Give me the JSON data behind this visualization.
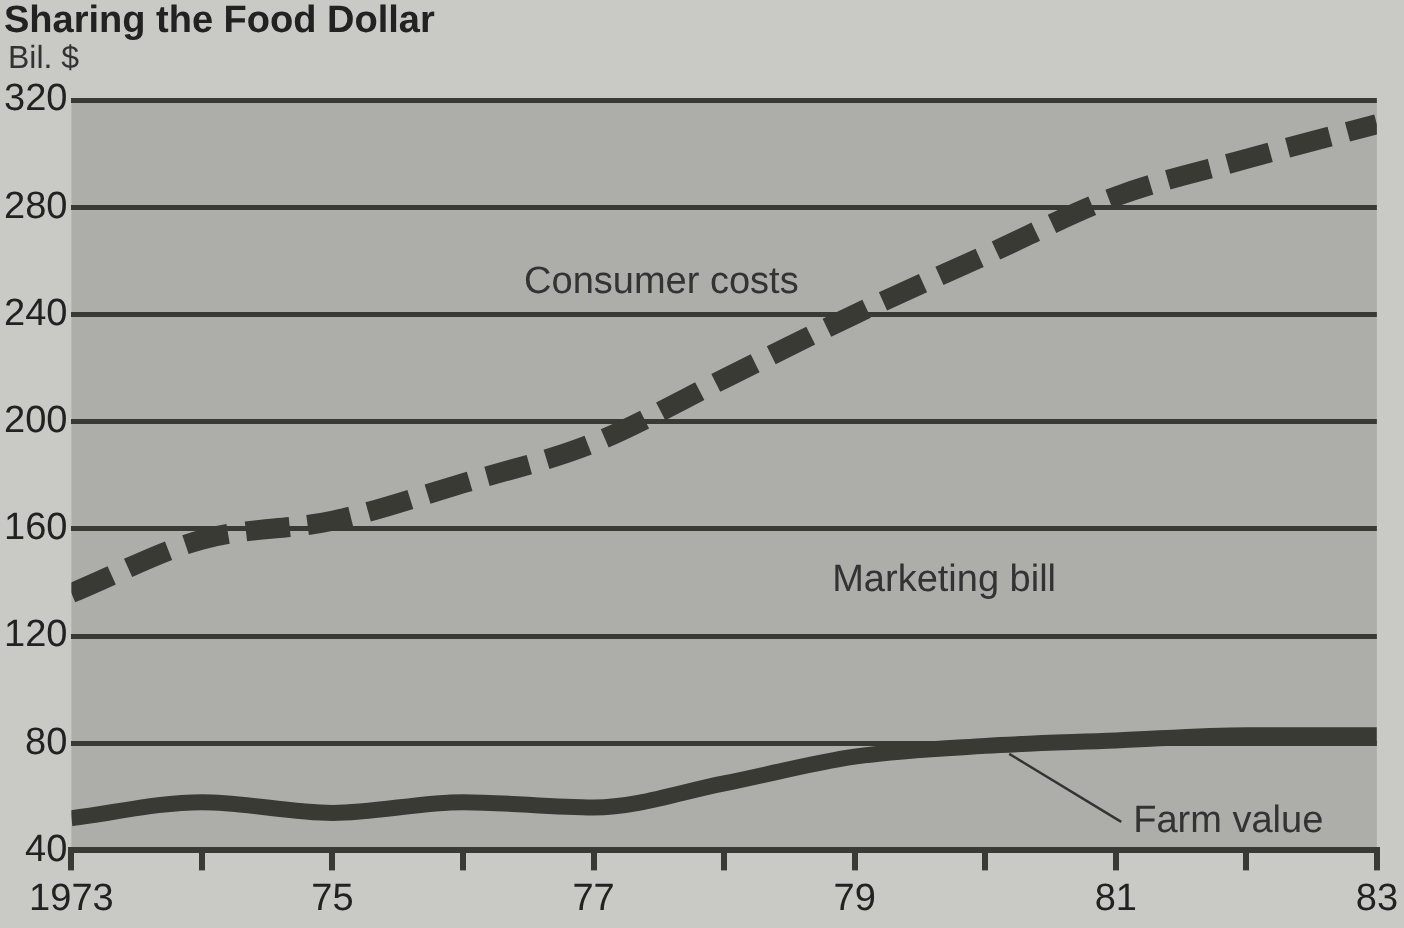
{
  "chart_data": {
    "type": "line",
    "title": "Sharing the Food Dollar",
    "ylabel": "Bil. $",
    "x": [
      1973,
      1974,
      1975,
      1976,
      1977,
      1978,
      1979,
      1980,
      1981,
      1982,
      1983
    ],
    "series": [
      {
        "name": "Consumer costs",
        "color": "#3a3a35",
        "line_style": "dashed",
        "values": [
          136,
          156,
          163,
          177,
          192,
          216,
          240,
          262,
          284,
          298,
          311
        ]
      },
      {
        "name": "Farm value",
        "color": "#3a3a35",
        "line_style": "solid",
        "values": [
          52,
          58,
          54,
          58,
          56,
          65,
          75,
          79,
          81,
          83,
          83
        ]
      }
    ],
    "annotations": [
      "Marketing bill"
    ],
    "xlim": [
      1973,
      1983
    ],
    "xticks": [
      1973,
      {
        "value": 1974,
        "label": null
      },
      {
        "value": 1975,
        "label": "75"
      },
      {
        "value": 1976,
        "label": null
      },
      {
        "value": 1977,
        "label": "77"
      },
      {
        "value": 1978,
        "label": null
      },
      {
        "value": 1979,
        "label": "79"
      },
      {
        "value": 1980,
        "label": null
      },
      {
        "value": 1981,
        "label": "81"
      },
      {
        "value": 1982,
        "label": null
      },
      {
        "value": 1983,
        "label": "83"
      }
    ],
    "ylim": [
      40,
      320
    ],
    "yticks": [
      40,
      80,
      120,
      160,
      200,
      240,
      280,
      320
    ],
    "grid": "y",
    "legend": false,
    "marker": "none"
  }
}
